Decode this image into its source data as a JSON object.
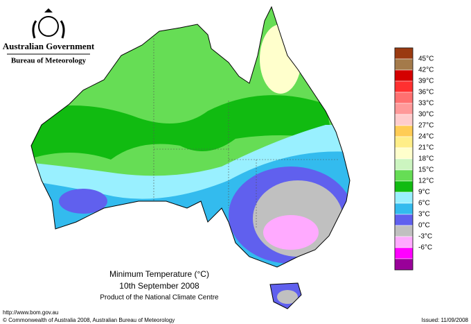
{
  "header": {
    "government": "Australian Government",
    "bureau": "Bureau of Meteorology"
  },
  "map": {
    "title": "Minimum Temperature (°C)",
    "date": "10th September 2008",
    "product": "Product of the National Climate Centre"
  },
  "legend": {
    "labels": [
      "45°C",
      "42°C",
      "39°C",
      "36°C",
      "33°C",
      "30°C",
      "27°C",
      "24°C",
      "21°C",
      "18°C",
      "15°C",
      "12°C",
      "9°C",
      "6°C",
      "3°C",
      "0°C",
      "-3°C",
      "-6°C"
    ],
    "colors": [
      "#9a3a10",
      "#a47a4a",
      "#d40000",
      "#ff3030",
      "#ff7070",
      "#ff9999",
      "#ffcccc",
      "#ffcc55",
      "#ffee88",
      "#ffffcc",
      "#ccf5c0",
      "#66dd55",
      "#11bb11",
      "#99f0ff",
      "#33bbee",
      "#6060ee",
      "#c0c0c0",
      "#ffaaff",
      "#ff00ff",
      "#990099"
    ]
  },
  "footer": {
    "url": "http://www.bom.gov.au",
    "copyright": "© Commonwealth of Australia 2008, Australian Bureau of Meteorology",
    "issued": "Issued: 11/09/2008"
  }
}
